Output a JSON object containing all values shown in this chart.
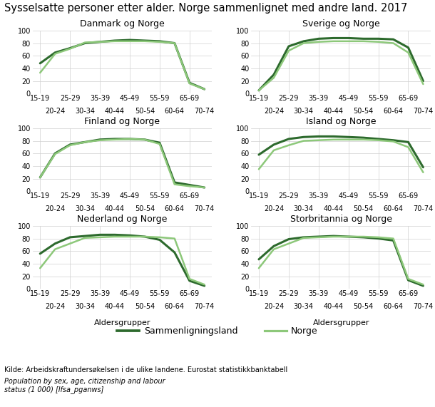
{
  "title": "Sysselsatte personer etter alder. Norge sammenlignet med andre land. 2017",
  "x_tick_labels_top": [
    "15-19",
    "25-29",
    "35-39",
    "45-49",
    "55-59",
    "65-69"
  ],
  "x_tick_labels_bottom": [
    "20-24",
    "30-34",
    "40-44",
    "50-54",
    "60-64",
    "70-74"
  ],
  "xlabel": "Aldersgrupper",
  "ylim": [
    0,
    100
  ],
  "yticks": [
    0,
    20,
    40,
    60,
    80,
    100
  ],
  "legend_sammenligningsland": "Sammenligningsland",
  "legend_norge": "Norge",
  "color_sammenligningsland": "#2d6a2d",
  "color_norge": "#8dc87a",
  "linewidth_sammenligningsland": 2.2,
  "linewidth_norge": 1.8,
  "subplots": [
    {
      "title": "Danmark og Norge",
      "sammenligningsland": [
        48,
        65,
        72,
        80,
        82,
        84,
        85,
        84,
        83,
        80,
        17,
        7
      ],
      "norge": [
        33,
        63,
        71,
        81,
        82,
        83,
        83,
        83,
        82,
        80,
        16,
        7
      ]
    },
    {
      "title": "Sverige og Norge",
      "sammenligningsland": [
        5,
        30,
        75,
        83,
        87,
        88,
        88,
        87,
        87,
        86,
        73,
        20
      ],
      "norge": [
        5,
        25,
        68,
        80,
        82,
        83,
        83,
        83,
        82,
        80,
        65,
        15
      ]
    },
    {
      "title": "Finland og Norge",
      "sammenligningsland": [
        22,
        60,
        74,
        78,
        82,
        83,
        83,
        82,
        77,
        14,
        10,
        6
      ],
      "norge": [
        22,
        59,
        73,
        78,
        81,
        82,
        83,
        82,
        75,
        11,
        8,
        6
      ]
    },
    {
      "title": "Island og Norge",
      "sammenligningsland": [
        58,
        74,
        83,
        86,
        87,
        87,
        86,
        85,
        83,
        81,
        78,
        38
      ],
      "norge": [
        35,
        65,
        73,
        80,
        81,
        82,
        82,
        82,
        81,
        79,
        70,
        30
      ]
    },
    {
      "title": "Nederland og Norge",
      "sammenligningsland": [
        56,
        72,
        82,
        84,
        86,
        86,
        85,
        83,
        78,
        58,
        13,
        5
      ],
      "norge": [
        33,
        63,
        72,
        81,
        82,
        83,
        83,
        83,
        82,
        80,
        16,
        7
      ]
    },
    {
      "title": "Storbritannia og Norge",
      "sammenligningsland": [
        47,
        68,
        79,
        82,
        83,
        84,
        83,
        82,
        80,
        77,
        14,
        5
      ],
      "norge": [
        33,
        63,
        72,
        81,
        82,
        83,
        83,
        83,
        82,
        80,
        16,
        7
      ]
    }
  ],
  "background_color": "#ffffff",
  "grid_color": "#d0d0d0",
  "title_fontsize": 10.5,
  "subplot_title_fontsize": 9,
  "tick_fontsize": 7,
  "legend_fontsize": 9,
  "footnote_fontsize": 7
}
